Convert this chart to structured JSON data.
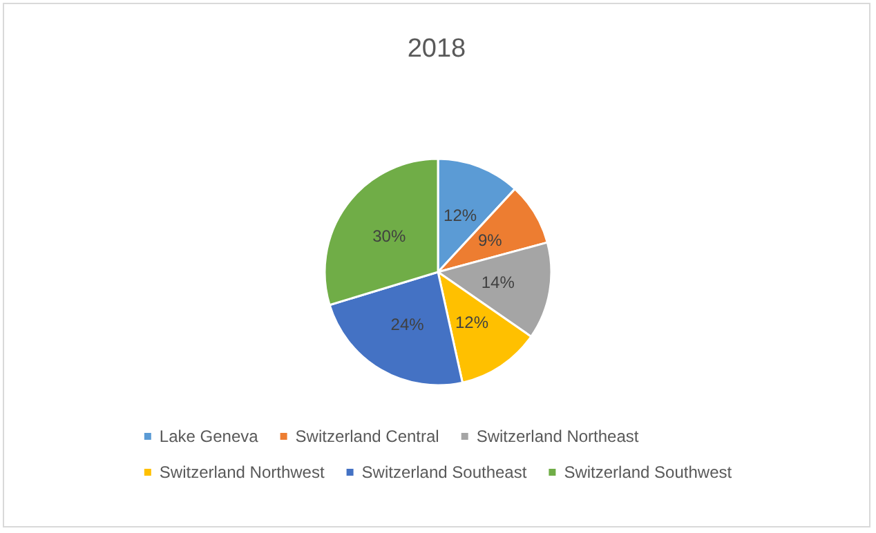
{
  "chart_data": {
    "type": "pie",
    "title": "2018",
    "categories": [
      "Lake Geneva",
      "Switzerland Central",
      "Switzerland Northeast",
      "Switzerland Northwest",
      "Switzerland Southeast",
      "Switzerland Southwest"
    ],
    "values": [
      12,
      9,
      14,
      12,
      24,
      30
    ],
    "colors": [
      "#5b9bd5",
      "#ed7d31",
      "#a5a5a5",
      "#ffc000",
      "#4472c4",
      "#70ad47"
    ],
    "value_labels": [
      "12%",
      "9%",
      "14%",
      "12%",
      "24%",
      "30%"
    ],
    "legend": "bottom"
  }
}
